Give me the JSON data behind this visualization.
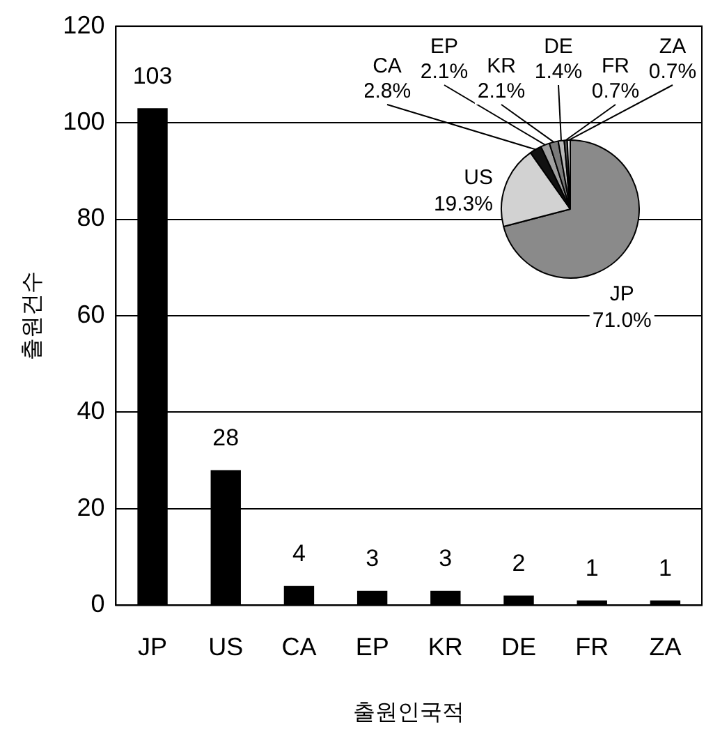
{
  "chart_data": [
    {
      "type": "bar",
      "xlabel": "출원인국적",
      "ylabel": "출원건수",
      "categories": [
        "JP",
        "US",
        "CA",
        "EP",
        "KR",
        "DE",
        "FR",
        "ZA"
      ],
      "values": [
        103,
        28,
        4,
        3,
        3,
        2,
        1,
        1
      ],
      "color": "#000000",
      "ylim": [
        0,
        120
      ],
      "yticks": [
        0,
        20,
        40,
        60,
        80,
        100,
        120
      ],
      "grid": "y",
      "data_labels": true,
      "legend": false
    },
    {
      "type": "pie",
      "categories": [
        "JP",
        "US",
        "CA",
        "EP",
        "KR",
        "DE",
        "FR",
        "ZA"
      ],
      "values": [
        71.0,
        19.3,
        2.8,
        2.1,
        2.1,
        1.4,
        0.7,
        0.7
      ],
      "value_labels": [
        "71.0%",
        "19.3%",
        "2.8%",
        "2.1%",
        "2.1%",
        "1.4%",
        "0.7%",
        "0.7%"
      ],
      "colors": [
        "#8a8a8a",
        "#d2d2d2",
        "#111111",
        "#a0a0a0",
        "#7a7a7a",
        "#b8b8b8",
        "#5a5a5a",
        "#e8e8e8"
      ],
      "legend": false
    }
  ]
}
